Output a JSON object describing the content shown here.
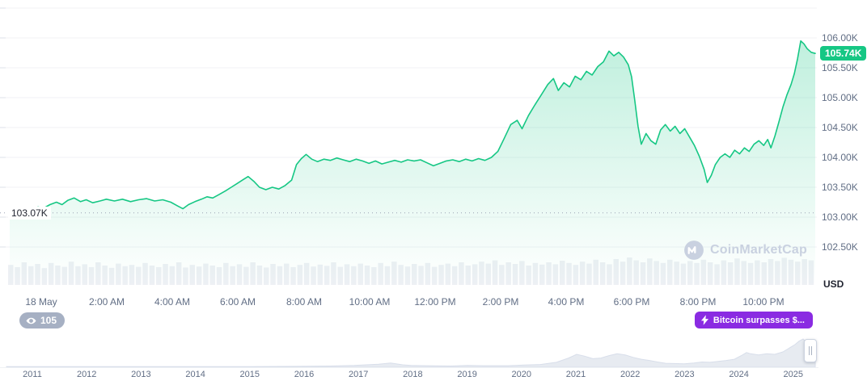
{
  "chart": {
    "open_label": "103.07K",
    "current_price": "105.74K",
    "currency": "USD",
    "y_axis_labels": [
      "106.00K",
      "105.50K",
      "105.00K",
      "104.50K",
      "104.00K",
      "103.50K",
      "103.00K",
      "102.50K"
    ],
    "x_axis_labels": [
      "18 May",
      "2:00 AM",
      "4:00 AM",
      "6:00 AM",
      "8:00 AM",
      "10:00 AM",
      "12:00 PM",
      "2:00 PM",
      "4:00 PM",
      "6:00 PM",
      "8:00 PM",
      "10:00 PM"
    ]
  },
  "badges": {
    "watch_count": "105",
    "event_text": "Bitcoin surpasses $..."
  },
  "watermark": {
    "text": "CoinMarketCap"
  },
  "navigator": {
    "years": [
      "2011",
      "2012",
      "2013",
      "2014",
      "2015",
      "2016",
      "2017",
      "2018",
      "2019",
      "2020",
      "2021",
      "2022",
      "2023",
      "2024",
      "2025"
    ]
  },
  "colors": {
    "accent_green": "#16c784",
    "event_purple": "#8a2be2",
    "watch_gray": "#a6b0c3",
    "axis_text": "#616e85"
  },
  "chart_data": {
    "type": "line",
    "title": "Bitcoin price intraday, 18 May",
    "ylabel": "USD",
    "ylim": [
      102.5,
      106.5
    ],
    "open": 103.07,
    "last": 105.74,
    "x_unit": "fraction of visible day range (0 = start, 1 = end)",
    "price_points": [
      [
        0.0,
        103.07
      ],
      [
        0.005,
        103.1
      ],
      [
        0.012,
        103.08
      ],
      [
        0.02,
        103.14
      ],
      [
        0.028,
        103.11
      ],
      [
        0.035,
        103.17
      ],
      [
        0.042,
        103.15
      ],
      [
        0.05,
        103.21
      ],
      [
        0.058,
        103.25
      ],
      [
        0.065,
        103.21
      ],
      [
        0.072,
        103.28
      ],
      [
        0.08,
        103.32
      ],
      [
        0.088,
        103.26
      ],
      [
        0.095,
        103.29
      ],
      [
        0.103,
        103.24
      ],
      [
        0.112,
        103.27
      ],
      [
        0.12,
        103.3
      ],
      [
        0.13,
        103.27
      ],
      [
        0.14,
        103.3
      ],
      [
        0.15,
        103.26
      ],
      [
        0.16,
        103.29
      ],
      [
        0.17,
        103.31
      ],
      [
        0.18,
        103.27
      ],
      [
        0.19,
        103.29
      ],
      [
        0.2,
        103.25
      ],
      [
        0.208,
        103.19
      ],
      [
        0.215,
        103.14
      ],
      [
        0.222,
        103.21
      ],
      [
        0.23,
        103.26
      ],
      [
        0.238,
        103.3
      ],
      [
        0.245,
        103.34
      ],
      [
        0.252,
        103.32
      ],
      [
        0.26,
        103.38
      ],
      [
        0.268,
        103.44
      ],
      [
        0.275,
        103.5
      ],
      [
        0.282,
        103.56
      ],
      [
        0.29,
        103.63
      ],
      [
        0.296,
        103.68
      ],
      [
        0.303,
        103.6
      ],
      [
        0.31,
        103.5
      ],
      [
        0.318,
        103.46
      ],
      [
        0.326,
        103.5
      ],
      [
        0.334,
        103.47
      ],
      [
        0.342,
        103.53
      ],
      [
        0.35,
        103.62
      ],
      [
        0.356,
        103.88
      ],
      [
        0.362,
        103.98
      ],
      [
        0.368,
        104.05
      ],
      [
        0.375,
        103.97
      ],
      [
        0.382,
        103.93
      ],
      [
        0.39,
        103.97
      ],
      [
        0.398,
        103.95
      ],
      [
        0.406,
        103.99
      ],
      [
        0.414,
        103.96
      ],
      [
        0.422,
        103.93
      ],
      [
        0.43,
        103.97
      ],
      [
        0.438,
        103.94
      ],
      [
        0.446,
        103.9
      ],
      [
        0.454,
        103.94
      ],
      [
        0.462,
        103.89
      ],
      [
        0.47,
        103.92
      ],
      [
        0.478,
        103.95
      ],
      [
        0.486,
        103.92
      ],
      [
        0.494,
        103.96
      ],
      [
        0.502,
        103.94
      ],
      [
        0.51,
        103.96
      ],
      [
        0.518,
        103.91
      ],
      [
        0.526,
        103.86
      ],
      [
        0.534,
        103.9
      ],
      [
        0.542,
        103.94
      ],
      [
        0.55,
        103.96
      ],
      [
        0.558,
        103.93
      ],
      [
        0.566,
        103.97
      ],
      [
        0.574,
        103.94
      ],
      [
        0.582,
        103.98
      ],
      [
        0.59,
        103.95
      ],
      [
        0.598,
        104.0
      ],
      [
        0.606,
        104.1
      ],
      [
        0.614,
        104.32
      ],
      [
        0.622,
        104.55
      ],
      [
        0.63,
        104.62
      ],
      [
        0.636,
        104.48
      ],
      [
        0.644,
        104.7
      ],
      [
        0.652,
        104.88
      ],
      [
        0.66,
        105.05
      ],
      [
        0.668,
        105.22
      ],
      [
        0.675,
        105.32
      ],
      [
        0.681,
        105.12
      ],
      [
        0.688,
        105.25
      ],
      [
        0.695,
        105.18
      ],
      [
        0.702,
        105.36
      ],
      [
        0.709,
        105.3
      ],
      [
        0.716,
        105.44
      ],
      [
        0.723,
        105.38
      ],
      [
        0.73,
        105.52
      ],
      [
        0.737,
        105.6
      ],
      [
        0.744,
        105.78
      ],
      [
        0.75,
        105.7
      ],
      [
        0.756,
        105.76
      ],
      [
        0.762,
        105.68
      ],
      [
        0.768,
        105.55
      ],
      [
        0.772,
        105.35
      ],
      [
        0.776,
        104.95
      ],
      [
        0.78,
        104.52
      ],
      [
        0.784,
        104.22
      ],
      [
        0.79,
        104.4
      ],
      [
        0.796,
        104.28
      ],
      [
        0.802,
        104.22
      ],
      [
        0.808,
        104.46
      ],
      [
        0.814,
        104.55
      ],
      [
        0.82,
        104.44
      ],
      [
        0.826,
        104.52
      ],
      [
        0.832,
        104.4
      ],
      [
        0.838,
        104.48
      ],
      [
        0.844,
        104.34
      ],
      [
        0.85,
        104.2
      ],
      [
        0.856,
        104.02
      ],
      [
        0.862,
        103.8
      ],
      [
        0.866,
        103.58
      ],
      [
        0.871,
        103.7
      ],
      [
        0.876,
        103.88
      ],
      [
        0.882,
        104.0
      ],
      [
        0.888,
        104.06
      ],
      [
        0.894,
        104.0
      ],
      [
        0.9,
        104.12
      ],
      [
        0.906,
        104.06
      ],
      [
        0.912,
        104.16
      ],
      [
        0.918,
        104.1
      ],
      [
        0.924,
        104.22
      ],
      [
        0.93,
        104.28
      ],
      [
        0.936,
        104.2
      ],
      [
        0.941,
        104.3
      ],
      [
        0.945,
        104.16
      ],
      [
        0.95,
        104.36
      ],
      [
        0.955,
        104.6
      ],
      [
        0.96,
        104.85
      ],
      [
        0.965,
        105.05
      ],
      [
        0.97,
        105.22
      ],
      [
        0.974,
        105.4
      ],
      [
        0.978,
        105.65
      ],
      [
        0.982,
        105.95
      ],
      [
        0.986,
        105.9
      ],
      [
        0.99,
        105.82
      ],
      [
        0.995,
        105.76
      ],
      [
        1.0,
        105.74
      ]
    ],
    "volume_bars": [
      0.62,
      0.55,
      0.7,
      0.58,
      0.65,
      0.52,
      0.68,
      0.6,
      0.56,
      0.72,
      0.58,
      0.64,
      0.55,
      0.7,
      0.6,
      0.53,
      0.66,
      0.58,
      0.62,
      0.56,
      0.68,
      0.6,
      0.55,
      0.65,
      0.58,
      0.7,
      0.54,
      0.62,
      0.57,
      0.66,
      0.6,
      0.55,
      0.68,
      0.58,
      0.64,
      0.56,
      0.7,
      0.6,
      0.54,
      0.65,
      0.58,
      0.66,
      0.55,
      0.62,
      0.68,
      0.57,
      0.63,
      0.59,
      0.7,
      0.56,
      0.64,
      0.58,
      0.66,
      0.6,
      0.55,
      0.68,
      0.58,
      0.72,
      0.62,
      0.57,
      0.65,
      0.59,
      0.68,
      0.56,
      0.62,
      0.66,
      0.58,
      0.7,
      0.6,
      0.64,
      0.72,
      0.66,
      0.76,
      0.62,
      0.7,
      0.65,
      0.74,
      0.6,
      0.68,
      0.63,
      0.7,
      0.64,
      0.75,
      0.68,
      0.62,
      0.72,
      0.66,
      0.78,
      0.7,
      0.64,
      0.8,
      0.72,
      0.85,
      0.76,
      0.7,
      0.82,
      0.74,
      0.68,
      0.78,
      0.72,
      0.66,
      0.74,
      0.68,
      0.78,
      0.7,
      0.64,
      0.76,
      0.7,
      0.82,
      0.74,
      0.68,
      0.76,
      0.7,
      0.8,
      0.74,
      0.84,
      0.78,
      0.72,
      0.8,
      0.76
    ],
    "navigator_points": [
      [
        0.0,
        0.02
      ],
      [
        0.1,
        0.02
      ],
      [
        0.2,
        0.02
      ],
      [
        0.3,
        0.02
      ],
      [
        0.36,
        0.03
      ],
      [
        0.4,
        0.04
      ],
      [
        0.43,
        0.06
      ],
      [
        0.46,
        0.1
      ],
      [
        0.475,
        0.14
      ],
      [
        0.49,
        0.08
      ],
      [
        0.5,
        0.06
      ],
      [
        0.52,
        0.05
      ],
      [
        0.55,
        0.04
      ],
      [
        0.57,
        0.06
      ],
      [
        0.59,
        0.05
      ],
      [
        0.62,
        0.05
      ],
      [
        0.64,
        0.07
      ],
      [
        0.66,
        0.09
      ],
      [
        0.68,
        0.16
      ],
      [
        0.695,
        0.3
      ],
      [
        0.705,
        0.42
      ],
      [
        0.715,
        0.36
      ],
      [
        0.725,
        0.28
      ],
      [
        0.735,
        0.3
      ],
      [
        0.745,
        0.38
      ],
      [
        0.755,
        0.44
      ],
      [
        0.765,
        0.4
      ],
      [
        0.775,
        0.32
      ],
      [
        0.785,
        0.26
      ],
      [
        0.795,
        0.22
      ],
      [
        0.805,
        0.17
      ],
      [
        0.815,
        0.13
      ],
      [
        0.825,
        0.12
      ],
      [
        0.838,
        0.11
      ],
      [
        0.85,
        0.14
      ],
      [
        0.86,
        0.17
      ],
      [
        0.87,
        0.16
      ],
      [
        0.88,
        0.19
      ],
      [
        0.89,
        0.22
      ],
      [
        0.9,
        0.26
      ],
      [
        0.91,
        0.4
      ],
      [
        0.915,
        0.48
      ],
      [
        0.92,
        0.44
      ],
      [
        0.93,
        0.4
      ],
      [
        0.94,
        0.44
      ],
      [
        0.95,
        0.42
      ],
      [
        0.96,
        0.5
      ],
      [
        0.965,
        0.58
      ],
      [
        0.97,
        0.66
      ],
      [
        0.975,
        0.74
      ],
      [
        0.98,
        0.85
      ],
      [
        0.985,
        0.92
      ],
      [
        0.99,
        0.8
      ],
      [
        0.995,
        0.85
      ],
      [
        1.0,
        0.88
      ]
    ]
  }
}
